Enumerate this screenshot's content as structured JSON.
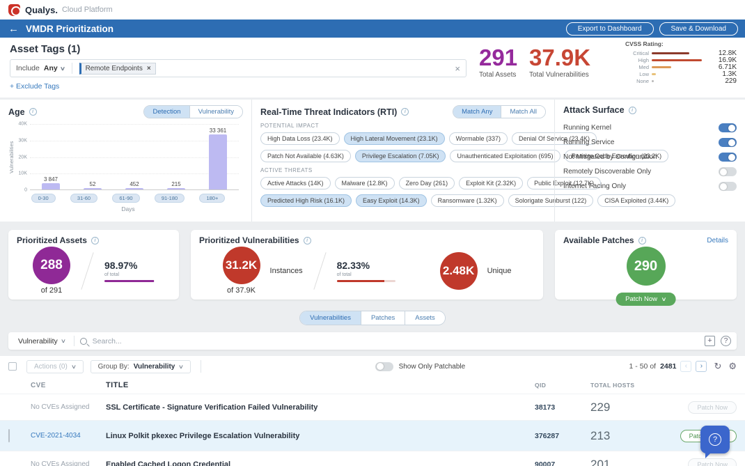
{
  "header": {
    "brand": "Qualys.",
    "platform": "Cloud Platform"
  },
  "titlebar": {
    "title": "VMDR Prioritization",
    "export_button": "Export to Dashboard",
    "save_button": "Save & Download"
  },
  "asset_tags": {
    "heading": "Asset Tags (1)",
    "include_label": "Include",
    "include_operator": "Any",
    "tags": [
      {
        "label": "Remote Endpoints"
      }
    ],
    "exclude_link": "+ Exclude Tags"
  },
  "summary": {
    "total_assets": {
      "value": "291",
      "label": "Total Assets",
      "color": "#952a9c"
    },
    "total_vulnerabilities": {
      "value": "37.9K",
      "label": "Total Vulnerabilities",
      "color": "#c74634"
    },
    "cvss": {
      "heading": "CVSS Rating:",
      "rows": [
        {
          "label": "Critical",
          "value": "12.8K",
          "numeric": 12800,
          "color": "#8c3a2b"
        },
        {
          "label": "High",
          "value": "16.9K",
          "numeric": 16900,
          "color": "#c14a30"
        },
        {
          "label": "Med",
          "value": "6.71K",
          "numeric": 6710,
          "color": "#dd9a57"
        },
        {
          "label": "Low",
          "value": "1.3K",
          "numeric": 1300,
          "color": "#e8c27a"
        },
        {
          "label": "None",
          "value": "229",
          "numeric": 229,
          "color": "#b9b9b9"
        }
      ]
    }
  },
  "age_panel": {
    "title": "Age",
    "toggle_options": {
      "left": "Detection",
      "right": "Vulnerability",
      "selected": "Detection"
    }
  },
  "chart_data": {
    "type": "bar",
    "title": "Age",
    "categories": [
      "0-30",
      "31-60",
      "61-90",
      "91-180",
      "180+"
    ],
    "values": [
      3847,
      52,
      452,
      215,
      33361
    ],
    "value_labels": [
      "3 847",
      "52",
      "452",
      "215",
      "33 361"
    ],
    "xlabel": "Days",
    "ylabel": "Vulnerabilities",
    "ylim": [
      0,
      40000
    ],
    "yticks": [
      "0",
      "10K",
      "20K",
      "30K",
      "40K"
    ],
    "bar_color": "#bdbaf2",
    "grid": true,
    "legend": "none"
  },
  "rti_panel": {
    "title": "Real-Time Threat Indicators (RTI)",
    "toggle_options": {
      "left": "Match Any",
      "right": "Match All",
      "selected": "Match Any"
    },
    "potential_impact": {
      "heading": "POTENTIAL IMPACT",
      "pills": [
        {
          "label": "High Data Loss (23.4K)",
          "selected": false
        },
        {
          "label": "High Lateral Movement (23.1K)",
          "selected": true
        },
        {
          "label": "Wormable (337)",
          "selected": false
        },
        {
          "label": "Denial Of Service (23.4K)",
          "selected": false
        },
        {
          "label": "Patch Not Available (4.63K)",
          "selected": false
        },
        {
          "label": "Privilege Escalation (7.05K)",
          "selected": true
        },
        {
          "label": "Unauthenticated Exploitation (695)",
          "selected": false
        },
        {
          "label": "Remote Code Execution (23.2K)",
          "selected": false
        }
      ]
    },
    "active_threats": {
      "heading": "ACTIVE THREATS",
      "pills": [
        {
          "label": "Active Attacks (14K)",
          "selected": false
        },
        {
          "label": "Malware (12.8K)",
          "selected": false
        },
        {
          "label": "Zero Day (261)",
          "selected": false
        },
        {
          "label": "Exploit Kit (2.32K)",
          "selected": false
        },
        {
          "label": "Public Exploit (12.7K)",
          "selected": false
        },
        {
          "label": "Predicted High Risk (16.1K)",
          "selected": true
        },
        {
          "label": "Easy Exploit (14.3K)",
          "selected": true
        },
        {
          "label": "Ransomware (1.32K)",
          "selected": false
        },
        {
          "label": "Solorigate Sunburst (122)",
          "selected": false
        },
        {
          "label": "CISA Exploited (3.44K)",
          "selected": false
        }
      ]
    }
  },
  "attack_surface": {
    "title": "Attack Surface",
    "toggles": [
      {
        "label": "Running Kernel",
        "on": true
      },
      {
        "label": "Running Service",
        "on": true
      },
      {
        "label": "Not Mitigated by Configuration",
        "on": true
      },
      {
        "label": "Remotely Discoverable Only",
        "on": false
      },
      {
        "label": "Internet Facing Only",
        "on": false
      }
    ]
  },
  "cards": {
    "prioritized_assets": {
      "title": "Prioritized Assets",
      "value": "288",
      "subtext": "of 291",
      "percent": "98.97%",
      "percent_label": "of total",
      "accent_color": "#8f2996"
    },
    "prioritized_vulnerabilities": {
      "title": "Prioritized Vulnerabilities",
      "instances_value": "31.2K",
      "instances_label": "Instances",
      "subtext": "of 37.9K",
      "percent": "82.33%",
      "percent_label": "of total",
      "unique_value": "2.48K",
      "unique_label": "Unique",
      "accent_color": "#c0392b"
    },
    "available_patches": {
      "title": "Available Patches",
      "details_link": "Details",
      "value": "290",
      "patch_button": "Patch Now",
      "accent_color": "#57a758"
    }
  },
  "tabs": {
    "vulnerabilities": "Vulnerabilities",
    "patches": "Patches",
    "assets": "Assets",
    "selected": "Vulnerabilities"
  },
  "search": {
    "scope": "Vulnerability",
    "placeholder": "Search..."
  },
  "toolbar": {
    "actions_label": "Actions (0)",
    "group_by_label": "Group By:",
    "group_by_value": "Vulnerability",
    "patchable_toggle_label": "Show Only Patchable",
    "pagination": {
      "range": "1 - 50 of",
      "total": "2481"
    }
  },
  "table": {
    "columns": {
      "cve": "CVE",
      "title": "TITLE",
      "qid": "QID",
      "total_hosts": "TOTAL HOSTS"
    },
    "rows": [
      {
        "cve": "No CVEs Assigned",
        "is_link": false,
        "title": "SSL Certificate - Signature Verification Failed Vulnerability",
        "qid": "38173",
        "total_hosts": "229",
        "patch_button": "Patch Now",
        "patch_enabled": false,
        "selected": false
      },
      {
        "cve": "CVE-2021-4034",
        "is_link": true,
        "title": "Linux Polkit pkexec Privilege Escalation Vulnerability",
        "qid": "376287",
        "total_hosts": "213",
        "patch_button": "Patch Now",
        "patch_enabled": true,
        "selected": true
      },
      {
        "cve": "No CVEs Assigned",
        "is_link": false,
        "title": "Enabled Cached Logon Credential",
        "qid": "90007",
        "total_hosts": "201",
        "patch_button": "Patch Now",
        "patch_enabled": false,
        "selected": false
      }
    ]
  },
  "colors": {
    "titlebar_blue": "#2d6db3",
    "selected_pill_bg": "#cfe2f4",
    "bar_lavender": "#bdbaf2",
    "toggle_on": "#4a7fc1",
    "selected_row_bg": "#e7f3fb",
    "help_bubble": "#3b66cc"
  }
}
